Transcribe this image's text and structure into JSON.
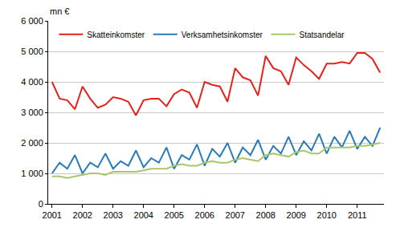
{
  "chart_data": {
    "type": "line",
    "ylabel": "mn €",
    "categories": [
      "2001",
      null,
      null,
      null,
      "2002",
      null,
      null,
      null,
      "2003",
      null,
      null,
      null,
      "2004",
      null,
      null,
      null,
      "2005",
      null,
      null,
      null,
      "2006",
      null,
      null,
      null,
      "2007",
      null,
      null,
      null,
      "2008",
      null,
      null,
      null,
      "2009",
      null,
      null,
      null,
      "2010",
      null,
      null,
      null,
      "2011",
      null,
      null,
      null
    ],
    "series": [
      {
        "name": "Skatteinkomster",
        "color": "#e3231b",
        "values": [
          4000,
          3450,
          3400,
          3100,
          3850,
          3450,
          3150,
          3250,
          3500,
          3450,
          3350,
          2900,
          3400,
          3450,
          3450,
          3200,
          3600,
          3750,
          3650,
          3150,
          4000,
          3900,
          3850,
          3350,
          4450,
          4150,
          4050,
          3550,
          4850,
          4450,
          4350,
          3900,
          4800,
          4550,
          4350,
          4100,
          4600,
          4600,
          4650,
          4600,
          4950,
          4950,
          4750,
          4300
        ]
      },
      {
        "name": "Verksamhetsinkomster",
        "color": "#2b7bb9",
        "values": [
          1000,
          1350,
          1150,
          1600,
          1000,
          1350,
          1200,
          1650,
          1150,
          1400,
          1250,
          1750,
          1200,
          1500,
          1350,
          1850,
          1150,
          1600,
          1450,
          1950,
          1250,
          1800,
          1550,
          2000,
          1350,
          1850,
          1600,
          2100,
          1450,
          1900,
          1650,
          2200,
          1600,
          2050,
          1750,
          2300,
          1650,
          2200,
          1850,
          2400,
          1800,
          2200,
          1900,
          2500
        ]
      },
      {
        "name": "Statsandelar",
        "color": "#a8c66c",
        "values": [
          900,
          900,
          850,
          900,
          950,
          1000,
          1000,
          950,
          1050,
          1050,
          1050,
          1050,
          1100,
          1150,
          1150,
          1150,
          1250,
          1300,
          1250,
          1250,
          1350,
          1400,
          1350,
          1350,
          1450,
          1500,
          1450,
          1400,
          1600,
          1650,
          1600,
          1550,
          1700,
          1750,
          1650,
          1650,
          1850,
          1850,
          1850,
          1850,
          1900,
          1900,
          1950,
          2000
        ]
      }
    ],
    "ylim": [
      0,
      6000
    ],
    "yticks": [
      0,
      {
        "value": 1000,
        "label": "1 000"
      },
      {
        "value": 2000,
        "label": "2 000"
      },
      {
        "value": 3000,
        "label": "3 000"
      },
      {
        "value": 4000,
        "label": "4 000"
      },
      {
        "value": 5000,
        "label": "5 000"
      },
      {
        "value": 6000,
        "label": "6 000"
      }
    ],
    "grid": true,
    "legend": "upper left"
  }
}
